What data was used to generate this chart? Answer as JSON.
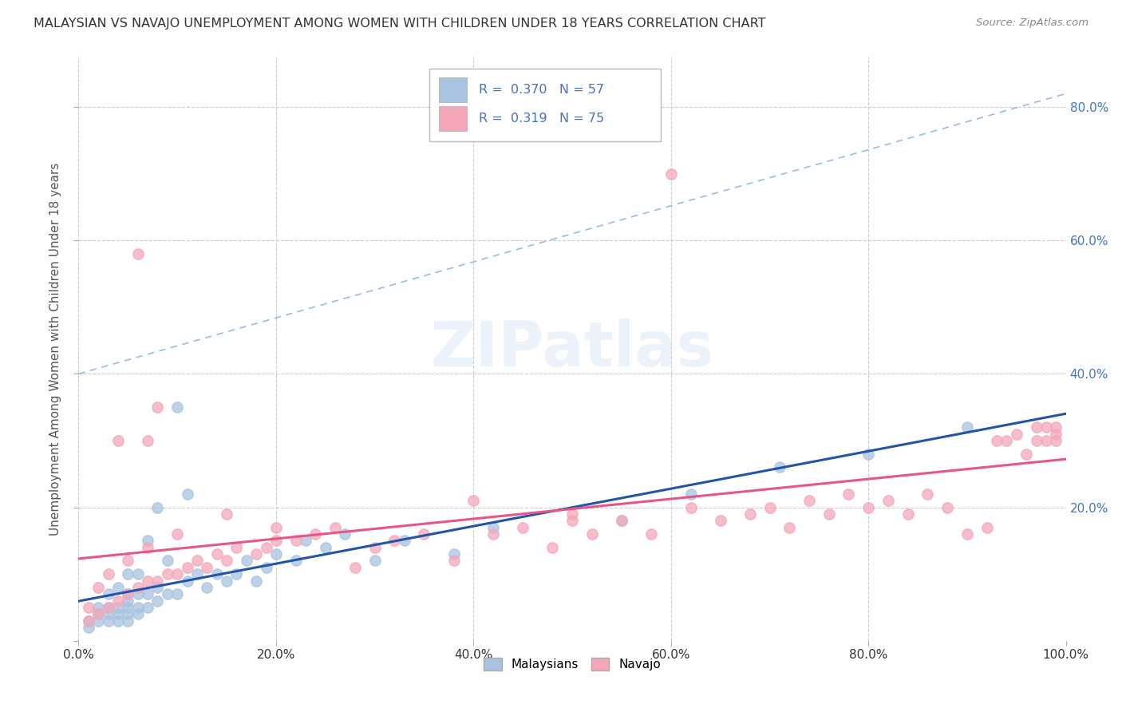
{
  "title": "MALAYSIAN VS NAVAJO UNEMPLOYMENT AMONG WOMEN WITH CHILDREN UNDER 18 YEARS CORRELATION CHART",
  "source": "Source: ZipAtlas.com",
  "ylabel": "Unemployment Among Women with Children Under 18 years",
  "watermark": "ZIPatlas",
  "R_malaysian": 0.37,
  "N_malaysian": 57,
  "R_navajo": 0.319,
  "N_navajo": 75,
  "xlim": [
    0.0,
    1.0
  ],
  "ylim": [
    0.0,
    0.875
  ],
  "ytick_values": [
    0.0,
    0.2,
    0.4,
    0.6,
    0.8
  ],
  "ytick_labels_right": [
    "",
    "20.0%",
    "40.0%",
    "60.0%",
    "80.0%"
  ],
  "xtick_values": [
    0.0,
    0.2,
    0.4,
    0.6,
    0.8,
    1.0
  ],
  "xtick_labels": [
    "0.0%",
    "20.0%",
    "40.0%",
    "60.0%",
    "80.0%",
    "100.0%"
  ],
  "color_malaysian": "#a8c4e0",
  "color_navajo": "#f4a7b9",
  "line_color_malaysian": "#2255aa",
  "line_color_navajo": "#e8558a",
  "dashed_line_color": "#99bbdd",
  "title_color": "#333333",
  "source_color": "#888888",
  "label_color": "#4472c4",
  "background_color": "#ffffff",
  "malaysian_x": [
    0.01,
    0.01,
    0.02,
    0.02,
    0.02,
    0.03,
    0.03,
    0.03,
    0.03,
    0.04,
    0.04,
    0.04,
    0.04,
    0.05,
    0.05,
    0.05,
    0.05,
    0.05,
    0.05,
    0.06,
    0.06,
    0.06,
    0.06,
    0.07,
    0.07,
    0.07,
    0.08,
    0.08,
    0.08,
    0.09,
    0.09,
    0.1,
    0.1,
    0.11,
    0.11,
    0.12,
    0.13,
    0.14,
    0.15,
    0.16,
    0.17,
    0.18,
    0.19,
    0.2,
    0.22,
    0.23,
    0.25,
    0.27,
    0.3,
    0.33,
    0.38,
    0.42,
    0.55,
    0.62,
    0.71,
    0.8,
    0.9
  ],
  "malaysian_y": [
    0.02,
    0.03,
    0.03,
    0.04,
    0.05,
    0.03,
    0.04,
    0.05,
    0.07,
    0.03,
    0.04,
    0.05,
    0.08,
    0.03,
    0.04,
    0.05,
    0.06,
    0.07,
    0.1,
    0.04,
    0.05,
    0.07,
    0.1,
    0.05,
    0.07,
    0.15,
    0.06,
    0.08,
    0.2,
    0.07,
    0.12,
    0.07,
    0.35,
    0.09,
    0.22,
    0.1,
    0.08,
    0.1,
    0.09,
    0.1,
    0.12,
    0.09,
    0.11,
    0.13,
    0.12,
    0.15,
    0.14,
    0.16,
    0.12,
    0.15,
    0.13,
    0.17,
    0.18,
    0.22,
    0.26,
    0.28,
    0.32
  ],
  "navajo_x": [
    0.01,
    0.01,
    0.02,
    0.02,
    0.03,
    0.03,
    0.04,
    0.04,
    0.05,
    0.05,
    0.06,
    0.06,
    0.07,
    0.07,
    0.08,
    0.08,
    0.09,
    0.1,
    0.11,
    0.12,
    0.13,
    0.14,
    0.15,
    0.16,
    0.18,
    0.19,
    0.2,
    0.22,
    0.24,
    0.26,
    0.28,
    0.3,
    0.32,
    0.35,
    0.38,
    0.4,
    0.42,
    0.45,
    0.48,
    0.5,
    0.52,
    0.55,
    0.58,
    0.6,
    0.62,
    0.65,
    0.68,
    0.7,
    0.72,
    0.74,
    0.76,
    0.78,
    0.8,
    0.82,
    0.84,
    0.86,
    0.88,
    0.9,
    0.92,
    0.93,
    0.94,
    0.95,
    0.96,
    0.97,
    0.97,
    0.98,
    0.98,
    0.99,
    0.99,
    0.99,
    0.07,
    0.1,
    0.15,
    0.2,
    0.5
  ],
  "navajo_y": [
    0.03,
    0.05,
    0.04,
    0.08,
    0.05,
    0.1,
    0.06,
    0.3,
    0.07,
    0.12,
    0.08,
    0.58,
    0.09,
    0.14,
    0.09,
    0.35,
    0.1,
    0.1,
    0.11,
    0.12,
    0.11,
    0.13,
    0.12,
    0.14,
    0.13,
    0.14,
    0.15,
    0.15,
    0.16,
    0.17,
    0.11,
    0.14,
    0.15,
    0.16,
    0.12,
    0.21,
    0.16,
    0.17,
    0.14,
    0.18,
    0.16,
    0.18,
    0.16,
    0.7,
    0.2,
    0.18,
    0.19,
    0.2,
    0.17,
    0.21,
    0.19,
    0.22,
    0.2,
    0.21,
    0.19,
    0.22,
    0.2,
    0.16,
    0.17,
    0.3,
    0.3,
    0.31,
    0.28,
    0.3,
    0.32,
    0.3,
    0.32,
    0.31,
    0.3,
    0.32,
    0.3,
    0.16,
    0.19,
    0.17,
    0.19
  ]
}
